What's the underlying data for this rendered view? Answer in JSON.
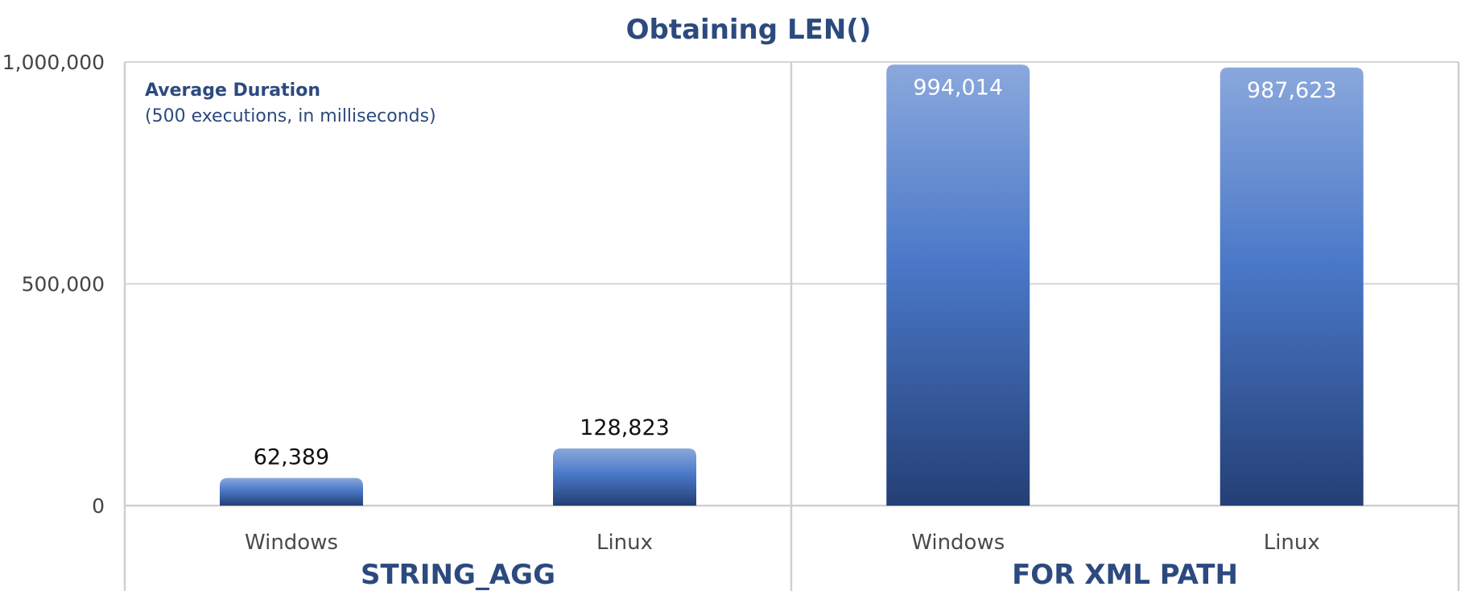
{
  "chart_data": {
    "type": "bar",
    "title": "Obtaining LEN()",
    "note": {
      "title": "Average Duration",
      "subtitle": "(500 executions, in milliseconds)"
    },
    "ylim": [
      0,
      1000000
    ],
    "yticks": [
      "0",
      "500,000",
      "1,000,000"
    ],
    "grid": true,
    "groups": [
      {
        "name": "STRING_AGG",
        "categories": [
          "Windows",
          "Linux"
        ],
        "values": [
          62389,
          128823
        ],
        "labels": [
          "62,389",
          "128,823"
        ]
      },
      {
        "name": "FOR XML PATH",
        "categories": [
          "Windows",
          "Linux"
        ],
        "values": [
          994014,
          987623
        ],
        "labels": [
          "994,014",
          "987,623"
        ]
      }
    ],
    "colors": {
      "bar_top": "#8aa8dc",
      "bar_mid": "#4a78c8",
      "bar_bottom": "#243f75",
      "grid": "#d6d6d6",
      "axis": "#cfcfcf"
    }
  }
}
